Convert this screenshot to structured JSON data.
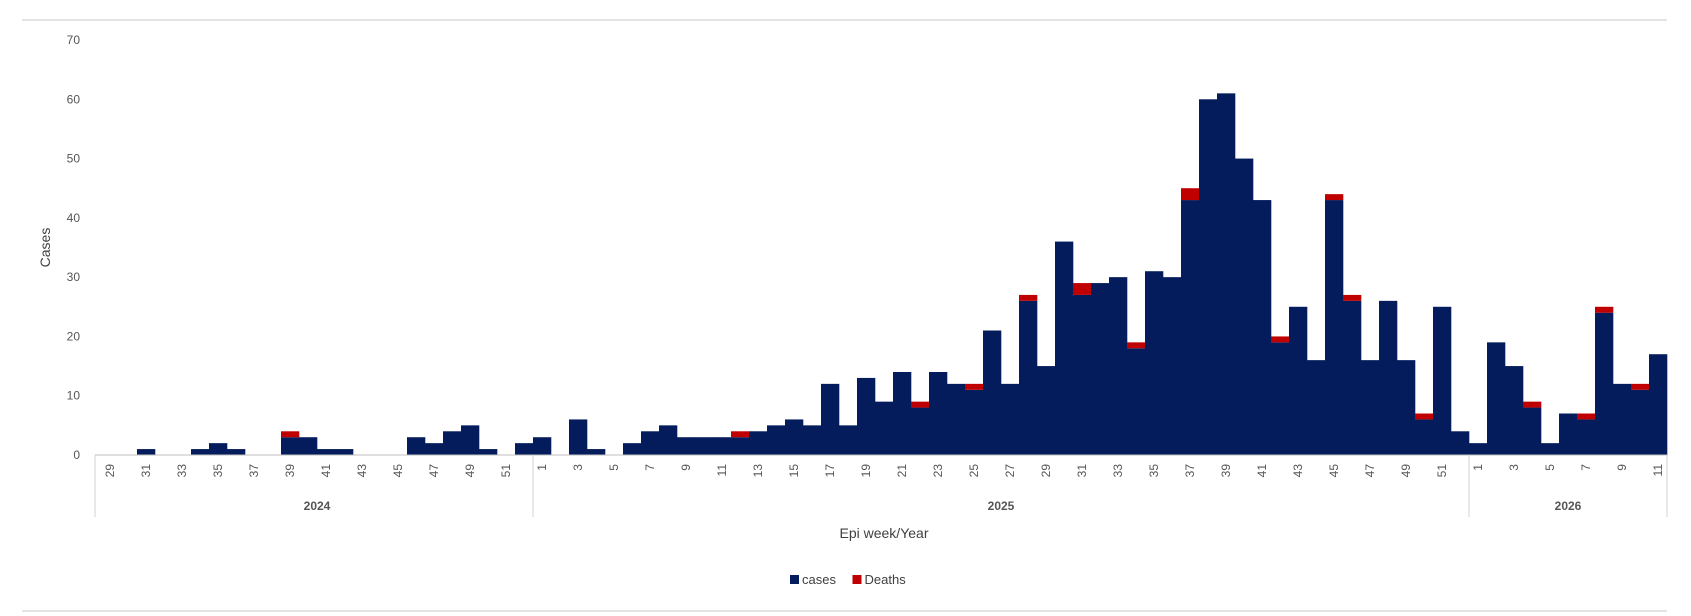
{
  "chart_data": {
    "type": "bar",
    "stacked": true,
    "title": "",
    "xlabel": "Epi week/Year",
    "ylabel": "Cases",
    "ylim": [
      0,
      70
    ],
    "y_ticks": [
      0,
      10,
      20,
      30,
      40,
      50,
      60,
      70
    ],
    "grid": false,
    "legend_position": "bottom-center",
    "years": [
      {
        "label": "2024",
        "weeks": [
          29,
          30,
          31,
          32,
          33,
          34,
          35,
          36,
          37,
          38,
          39,
          40,
          41,
          42,
          43,
          44,
          45,
          46,
          47,
          48,
          49,
          50,
          51,
          52
        ]
      },
      {
        "label": "2025",
        "weeks": [
          1,
          2,
          3,
          4,
          5,
          6,
          7,
          8,
          9,
          10,
          11,
          12,
          13,
          14,
          15,
          16,
          17,
          18,
          19,
          20,
          21,
          22,
          23,
          24,
          25,
          26,
          27,
          28,
          29,
          30,
          31,
          32,
          33,
          34,
          35,
          36,
          37,
          38,
          39,
          40,
          41,
          42,
          43,
          44,
          45,
          46,
          47,
          48,
          49,
          50,
          51,
          52
        ]
      },
      {
        "label": "2026",
        "weeks": [
          1,
          2,
          3,
          4,
          5,
          6,
          7,
          8,
          9,
          10,
          11
        ]
      }
    ],
    "tick_labels": {
      "2024": [
        "29",
        "31",
        "33",
        "35",
        "37",
        "39",
        "41",
        "43",
        "45",
        "47",
        "49",
        "51"
      ],
      "2025": [
        "1",
        "3",
        "5",
        "7",
        "9",
        "11",
        "13",
        "15",
        "17",
        "19",
        "21",
        "23",
        "25",
        "27",
        "29",
        "31",
        "33",
        "35",
        "37",
        "39",
        "41",
        "43",
        "45",
        "47",
        "49",
        "51"
      ],
      "2026": [
        "1",
        "3",
        "5",
        "7",
        "9",
        "11"
      ]
    },
    "series": [
      {
        "name": "cases",
        "color": "#041c5c",
        "values": [
          0,
          0,
          1,
          0,
          0,
          1,
          2,
          1,
          0,
          0,
          3,
          3,
          1,
          1,
          0,
          0,
          0,
          3,
          2,
          4,
          5,
          1,
          0,
          2,
          3,
          0,
          6,
          1,
          0,
          2,
          4,
          5,
          3,
          3,
          3,
          3,
          4,
          5,
          6,
          5,
          12,
          5,
          13,
          9,
          14,
          8,
          14,
          12,
          11,
          21,
          12,
          26,
          15,
          36,
          27,
          29,
          30,
          18,
          31,
          30,
          43,
          60,
          61,
          50,
          43,
          19,
          25,
          16,
          43,
          26,
          16,
          26,
          16,
          6,
          25,
          4,
          2,
          19,
          15,
          8,
          2,
          7,
          6,
          24,
          12,
          11,
          17
        ]
      },
      {
        "name": "Deaths",
        "color": "#c00000",
        "values": [
          0,
          0,
          0,
          0,
          0,
          0,
          0,
          0,
          0,
          0,
          1,
          0,
          0,
          0,
          0,
          0,
          0,
          0,
          0,
          0,
          0,
          0,
          0,
          0,
          0,
          0,
          0,
          0,
          0,
          0,
          0,
          0,
          0,
          0,
          0,
          1,
          0,
          0,
          0,
          0,
          0,
          0,
          0,
          0,
          0,
          1,
          0,
          0,
          1,
          0,
          0,
          1,
          0,
          0,
          2,
          0,
          0,
          1,
          0,
          0,
          2,
          0,
          0,
          0,
          0,
          1,
          0,
          0,
          1,
          1,
          0,
          0,
          0,
          1,
          0,
          0,
          0,
          0,
          0,
          1,
          0,
          0,
          1,
          1,
          0,
          1,
          0
        ]
      }
    ]
  }
}
